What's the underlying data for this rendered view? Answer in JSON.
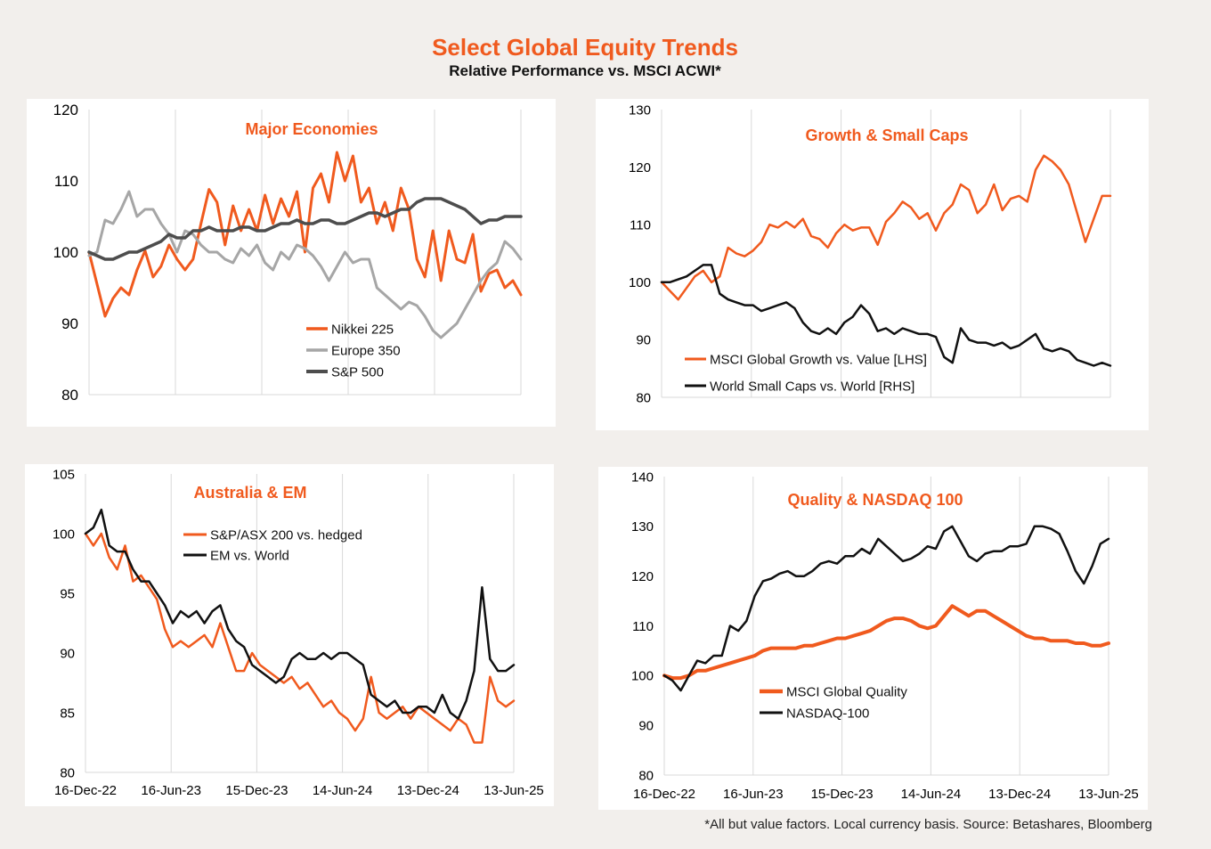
{
  "header": {
    "title": "Select Global Equity Trends",
    "subtitle": "Relative Performance vs. MSCI ACWI*"
  },
  "footnote": "*All but value factors. Local currency basis.  Source: Betashares, Bloomberg",
  "colors": {
    "orange": "#f05a1e",
    "grey": "#a6a6a6",
    "darkgrey": "#4d4d4d",
    "black": "#111111",
    "accent_title": "#f05a1e"
  },
  "chart_data": [
    {
      "type": "line",
      "title": "Major Economies",
      "ylim": [
        80,
        120
      ],
      "yticks": [
        80,
        90,
        100,
        110,
        120
      ],
      "xlim": [
        "2022-12-16",
        "2025-06-13"
      ],
      "xticks": [
        "2022-12-16",
        "2023-06-16",
        "2023-12-15",
        "2024-06-14",
        "2024-12-13",
        "2025-06-13"
      ],
      "xticklabels": [],
      "grid": "vertical",
      "legend_position": "bottom-center",
      "series": [
        {
          "name": "Nikkei 225",
          "color": "#f05a1e",
          "y": [
            100.0,
            95.5,
            91.0,
            93.5,
            95.0,
            94.0,
            97.5,
            100.2,
            96.5,
            98.0,
            101.0,
            99.0,
            97.5,
            99.0,
            104.0,
            108.8,
            107.0,
            101.0,
            106.5,
            103.0,
            106.0,
            103.0,
            108.0,
            104.0,
            107.5,
            105.0,
            108.5,
            100.0,
            109.0,
            111.0,
            107.0,
            114.0,
            110.0,
            113.5,
            107.0,
            109.0,
            104.0,
            107.0,
            103.0,
            109.0,
            106.0,
            99.0,
            96.5,
            103.0,
            96.0,
            103.0,
            99.0,
            98.5,
            102.5,
            94.5,
            97.0,
            97.5,
            95.0,
            96.0,
            94.0
          ]
        },
        {
          "name": "Europe 350",
          "color": "#a6a6a6",
          "y": [
            99.5,
            100.0,
            104.5,
            104.0,
            106.0,
            108.5,
            105.0,
            106.0,
            106.0,
            104.0,
            102.5,
            100.0,
            103.0,
            102.5,
            101.0,
            100.0,
            100.0,
            99.0,
            98.5,
            100.5,
            99.5,
            101.0,
            98.5,
            97.5,
            100.0,
            99.0,
            101.0,
            100.5,
            99.5,
            98.0,
            96.0,
            98.0,
            100.0,
            98.5,
            99.0,
            99.0,
            95.0,
            94.0,
            93.0,
            92.0,
            93.0,
            92.5,
            91.0,
            89.0,
            88.0,
            89.0,
            90.0,
            92.0,
            94.0,
            96.0,
            97.5,
            98.5,
            101.5,
            100.5,
            99.0
          ]
        },
        {
          "name": "S&P 500",
          "color": "#4d4d4d",
          "y": [
            100.0,
            99.5,
            99.0,
            99.0,
            99.5,
            100.0,
            100.0,
            100.5,
            101.0,
            101.5,
            102.5,
            102.0,
            102.0,
            103.0,
            103.0,
            103.5,
            103.0,
            103.0,
            103.0,
            103.5,
            103.5,
            103.0,
            103.0,
            103.5,
            104.0,
            104.0,
            104.5,
            104.0,
            104.0,
            104.5,
            104.5,
            104.0,
            104.0,
            104.5,
            105.0,
            105.5,
            105.5,
            105.0,
            105.5,
            106.0,
            106.0,
            107.0,
            107.5,
            107.5,
            107.5,
            107.0,
            106.5,
            106.0,
            105.0,
            104.0,
            104.5,
            104.5,
            105.0,
            105.0,
            105.0
          ]
        }
      ]
    },
    {
      "type": "line",
      "title": "Growth & Small Caps",
      "ylim": [
        80,
        130
      ],
      "yticks": [
        80,
        90,
        100,
        110,
        120,
        130
      ],
      "xlim": [
        "2022-12-16",
        "2025-06-13"
      ],
      "xticks": [
        "2022-12-16",
        "2023-06-16",
        "2023-12-15",
        "2024-06-14",
        "2024-12-13",
        "2025-06-13"
      ],
      "xticklabels": [],
      "grid": "vertical",
      "legend_position": "bottom-left",
      "series": [
        {
          "name": "MSCI Global Growth vs. Value [LHS]",
          "color": "#f05a1e",
          "y": [
            100.0,
            98.5,
            97.0,
            99.0,
            101.0,
            102.0,
            100.0,
            101.0,
            106.0,
            105.0,
            104.5,
            105.5,
            107.0,
            110.0,
            109.5,
            110.5,
            109.5,
            111.0,
            108.0,
            107.5,
            106.0,
            108.5,
            110.0,
            109.0,
            109.5,
            109.5,
            106.5,
            110.5,
            112.0,
            114.0,
            113.0,
            111.0,
            112.0,
            109.0,
            112.0,
            113.5,
            117.0,
            116.0,
            112.0,
            113.5,
            117.0,
            112.5,
            114.5,
            115.0,
            114.0,
            119.5,
            122.0,
            121.0,
            119.5,
            117.0,
            112.0,
            107.0,
            111.0,
            115.0,
            115.0
          ]
        },
        {
          "name": "World Small Caps vs. World [RHS]",
          "color": "#111111",
          "y": [
            100.0,
            100.0,
            100.5,
            101.0,
            102.0,
            103.0,
            103.0,
            98.0,
            97.0,
            96.5,
            96.0,
            96.0,
            95.0,
            95.5,
            96.0,
            96.5,
            95.5,
            93.0,
            91.5,
            91.0,
            92.0,
            91.0,
            93.0,
            94.0,
            96.0,
            94.5,
            91.5,
            92.0,
            91.0,
            92.0,
            91.5,
            91.0,
            91.0,
            90.5,
            87.0,
            86.0,
            92.0,
            90.0,
            89.5,
            89.5,
            89.0,
            89.5,
            88.5,
            89.0,
            90.0,
            91.0,
            88.5,
            88.0,
            88.5,
            88.0,
            86.5,
            86.0,
            85.5,
            86.0,
            85.5
          ]
        }
      ]
    },
    {
      "type": "line",
      "title": "Australia & EM",
      "ylim": [
        80,
        105
      ],
      "yticks": [
        80,
        85,
        90,
        95,
        100,
        105
      ],
      "xlim": [
        "2022-12-16",
        "2025-06-13"
      ],
      "xticks": [
        "2022-12-16",
        "2023-06-16",
        "2023-12-15",
        "2024-06-14",
        "2024-12-13",
        "2025-06-13"
      ],
      "xticklabels": [
        "16-Dec-22",
        "16-Jun-23",
        "15-Dec-23",
        "14-Jun-24",
        "13-Dec-24",
        "13-Jun-25"
      ],
      "grid": "vertical",
      "legend_position": "top-center",
      "series": [
        {
          "name": "S&P/ASX 200 vs. hedged",
          "color": "#f05a1e",
          "y": [
            100.0,
            99.0,
            100.0,
            98.0,
            97.0,
            99.0,
            96.0,
            96.5,
            95.5,
            94.5,
            92.0,
            90.5,
            91.0,
            90.5,
            91.0,
            91.5,
            90.5,
            92.5,
            90.5,
            88.5,
            88.5,
            90.0,
            89.0,
            88.5,
            88.0,
            87.5,
            88.0,
            87.0,
            87.5,
            86.5,
            85.5,
            86.0,
            85.0,
            84.5,
            83.5,
            84.5,
            88.0,
            85.0,
            84.5,
            85.0,
            85.5,
            84.5,
            85.5,
            85.0,
            84.5,
            84.0,
            83.5,
            84.5,
            84.0,
            82.5,
            82.5,
            88.0,
            86.0,
            85.5,
            86.0
          ]
        },
        {
          "name": "EM vs. World",
          "color": "#111111",
          "y": [
            100.0,
            100.5,
            102.0,
            99.0,
            98.5,
            98.5,
            97.0,
            96.0,
            96.0,
            95.0,
            94.0,
            92.5,
            93.5,
            93.0,
            93.5,
            92.5,
            93.5,
            94.0,
            92.0,
            91.0,
            90.5,
            89.0,
            88.5,
            88.0,
            87.5,
            88.0,
            89.5,
            90.0,
            89.5,
            89.5,
            90.0,
            89.5,
            90.0,
            90.0,
            89.5,
            89.0,
            86.5,
            86.0,
            85.5,
            86.0,
            85.0,
            85.0,
            85.5,
            85.5,
            85.0,
            86.5,
            85.0,
            84.5,
            86.0,
            88.5,
            95.5,
            89.5,
            88.5,
            88.5,
            89.0
          ]
        }
      ]
    },
    {
      "type": "line",
      "title": "Quality & NASDAQ 100",
      "ylim": [
        80,
        140
      ],
      "yticks": [
        80,
        90,
        100,
        110,
        120,
        130,
        140
      ],
      "xlim": [
        "2022-12-16",
        "2025-06-13"
      ],
      "xticks": [
        "2022-12-16",
        "2023-06-16",
        "2023-12-15",
        "2024-06-14",
        "2024-12-13",
        "2025-06-13"
      ],
      "xticklabels": [
        "16-Dec-22",
        "16-Jun-23",
        "15-Dec-23",
        "14-Jun-24",
        "13-Dec-24",
        "13-Jun-25"
      ],
      "grid": "vertical",
      "legend_position": "bottom-center",
      "series": [
        {
          "name": "MSCI Global Quality",
          "color": "#f05a1e",
          "y": [
            100.0,
            99.5,
            99.5,
            100.0,
            101.0,
            101.0,
            101.5,
            102.0,
            102.5,
            103.0,
            103.5,
            104.0,
            105.0,
            105.5,
            105.5,
            105.5,
            105.5,
            106.0,
            106.0,
            106.5,
            107.0,
            107.5,
            107.5,
            108.0,
            108.5,
            109.0,
            110.0,
            111.0,
            111.5,
            111.5,
            111.0,
            110.0,
            109.5,
            110.0,
            112.0,
            114.0,
            113.0,
            112.0,
            113.0,
            113.0,
            112.0,
            111.0,
            110.0,
            109.0,
            108.0,
            107.5,
            107.5,
            107.0,
            107.0,
            107.0,
            106.5,
            106.5,
            106.0,
            106.0,
            106.5
          ]
        },
        {
          "name": "NASDAQ-100",
          "color": "#111111",
          "y": [
            100.0,
            99.0,
            97.0,
            100.0,
            103.0,
            102.5,
            104.0,
            104.0,
            110.0,
            109.0,
            111.0,
            116.0,
            119.0,
            119.5,
            120.5,
            121.0,
            120.0,
            120.0,
            121.0,
            122.5,
            123.0,
            122.5,
            124.0,
            124.0,
            125.5,
            124.5,
            127.5,
            126.0,
            124.5,
            123.0,
            123.5,
            124.5,
            126.0,
            125.5,
            129.0,
            130.0,
            127.0,
            124.0,
            123.0,
            124.5,
            125.0,
            125.0,
            126.0,
            126.0,
            126.5,
            130.0,
            130.0,
            129.5,
            128.5,
            125.0,
            121.0,
            118.5,
            122.0,
            126.5,
            127.5
          ]
        }
      ]
    }
  ]
}
